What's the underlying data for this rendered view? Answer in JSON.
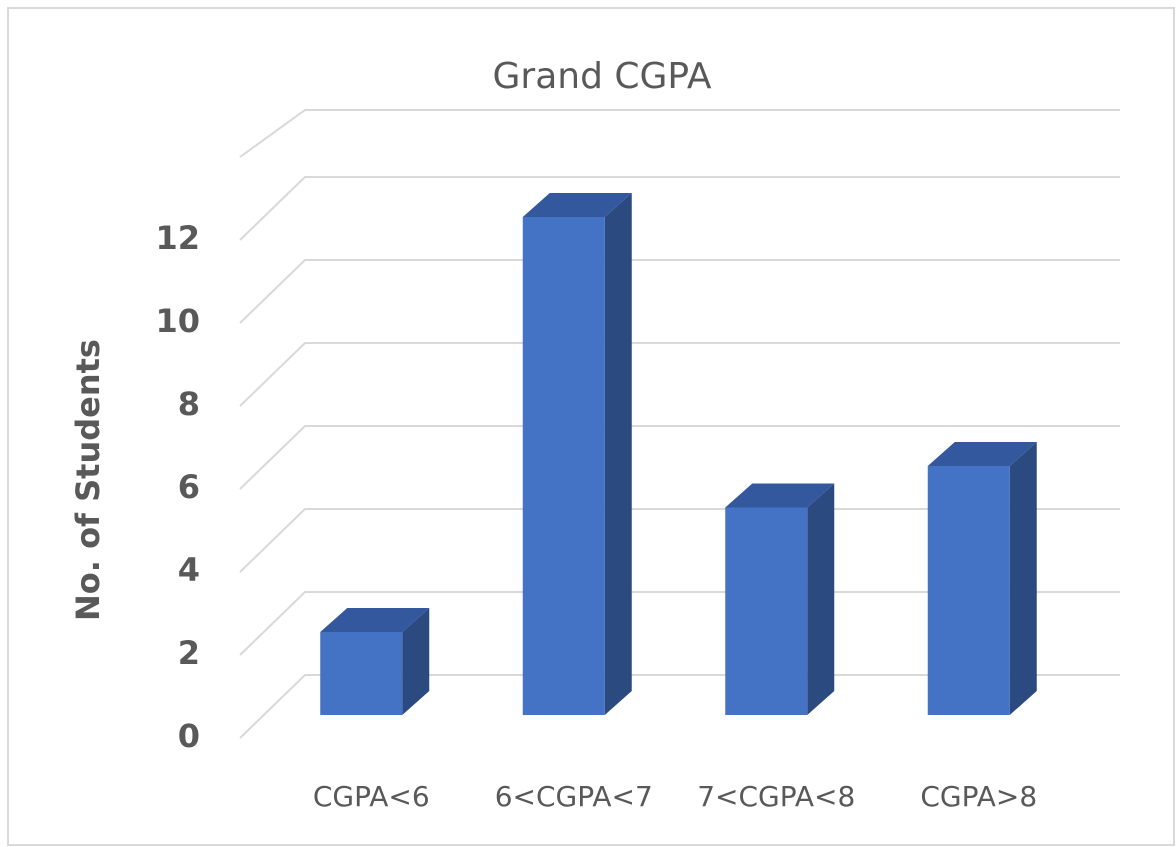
{
  "chart_data": {
    "type": "bar3d",
    "title": "Grand CGPA",
    "y_label": "No. of Students",
    "categories": [
      "CGPA<6",
      "6<CGPA<7",
      "7<CGPA<8",
      "CGPA>8"
    ],
    "values": [
      2,
      12,
      5,
      6
    ],
    "color": "#4472c4",
    "ylim": [
      0,
      14
    ],
    "yticks": [
      0,
      2,
      4,
      6,
      8,
      10,
      12
    ],
    "grid": true
  }
}
